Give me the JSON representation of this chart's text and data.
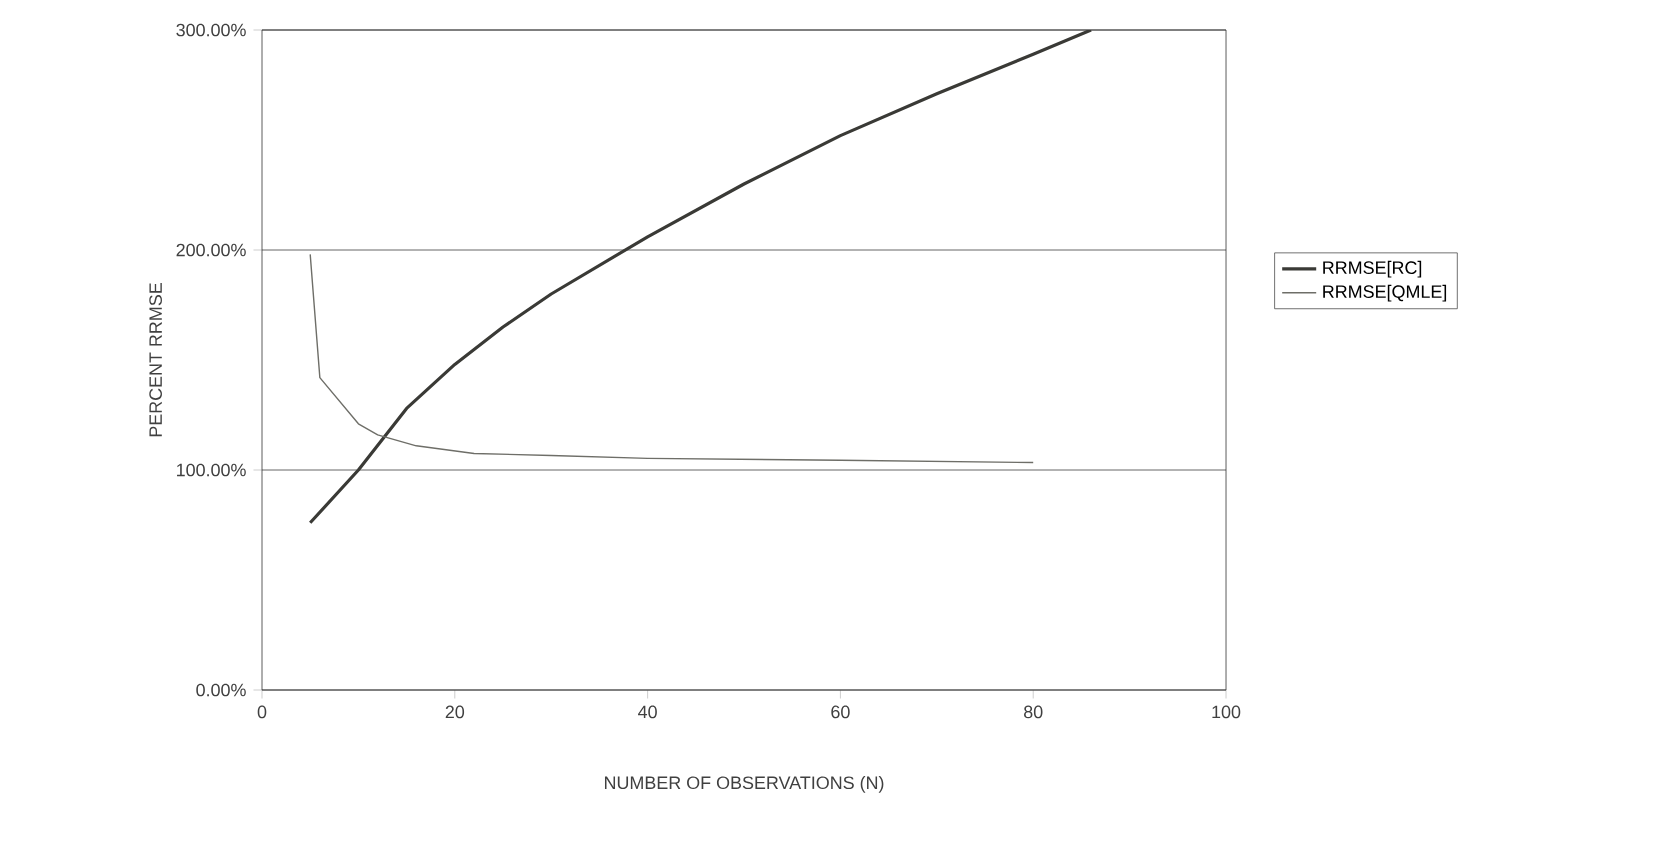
{
  "chart_data": {
    "type": "line",
    "xlabel": "NUMBER OF OBSERVATIONS (N)",
    "ylabel": "PERCENT RRMSE",
    "xlim": [
      0,
      100
    ],
    "xticks": [
      0,
      20,
      40,
      60,
      80,
      100
    ],
    "ylim": [
      0,
      300
    ],
    "yticks": [
      {
        "value": 0,
        "label": "0.00%"
      },
      {
        "value": 100,
        "label": "100.00%"
      },
      {
        "value": 200,
        "label": "200.00%"
      },
      {
        "value": 300,
        "label": "300.00%"
      }
    ],
    "grid": "y",
    "legend": "right",
    "marker": "none",
    "line_style": "solid",
    "series": [
      {
        "name": "RRMSE[RC]",
        "color": "#3a3a36",
        "x": [
          5,
          10,
          15,
          20,
          25,
          30,
          40,
          50,
          60,
          70,
          80,
          86
        ],
        "values": [
          76,
          100,
          128,
          148,
          165,
          180,
          206,
          230,
          252,
          271,
          289,
          300
        ]
      },
      {
        "name": "RRMSE[QMLE]",
        "color": "#6e6e68",
        "x": [
          5,
          6,
          10,
          12,
          16,
          22,
          30,
          40,
          60,
          80
        ],
        "values": [
          198,
          142,
          121,
          116,
          111,
          107.5,
          106.6,
          105.3,
          104.4,
          103.4
        ]
      }
    ]
  }
}
